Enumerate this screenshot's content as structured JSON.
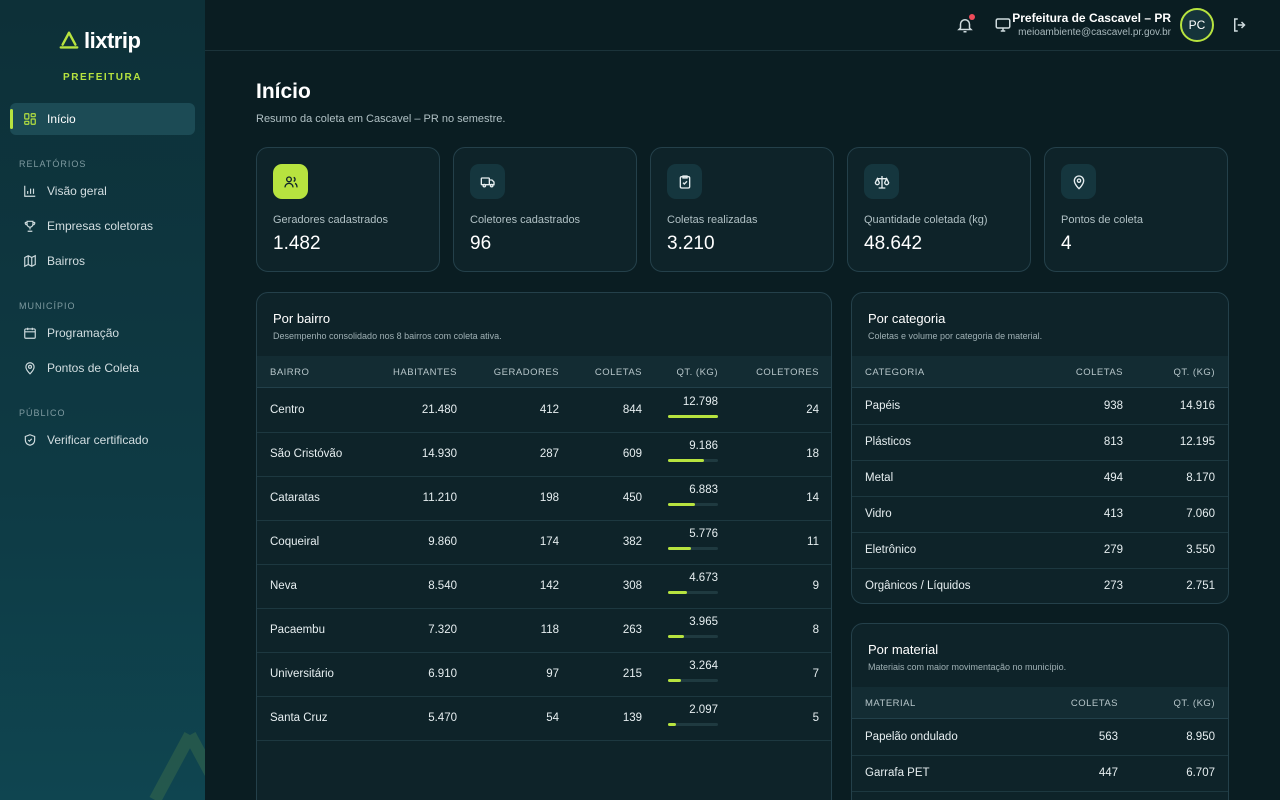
{
  "brand": {
    "name": "lixtrip",
    "subtitle": "PREFEITURA"
  },
  "sidebar": {
    "active": {
      "label": "Início"
    },
    "sections": [
      {
        "title": "RELATÓRIOS",
        "items": [
          {
            "label": "Visão geral",
            "icon": "bar-chart-icon"
          },
          {
            "label": "Empresas coletoras",
            "icon": "trophy-icon"
          },
          {
            "label": "Bairros",
            "icon": "map-icon"
          }
        ]
      },
      {
        "title": "MUNICÍPIO",
        "items": [
          {
            "label": "Programação",
            "icon": "calendar-icon"
          },
          {
            "label": "Pontos de Coleta",
            "icon": "map-pin-icon"
          }
        ]
      },
      {
        "title": "PÚBLICO",
        "items": [
          {
            "label": "Verificar certificado",
            "icon": "shield-icon"
          }
        ]
      }
    ]
  },
  "topbar": {
    "user_name": "Prefeitura de Cascavel – PR",
    "user_email": "meioambiente@cascavel.pr.gov.br",
    "avatar_initials": "PC"
  },
  "page": {
    "title": "Início",
    "subtitle": "Resumo da coleta em Cascavel – PR no semestre."
  },
  "stats": [
    {
      "label": "Geradores cadastrados",
      "value": "1.482",
      "icon": "users-icon"
    },
    {
      "label": "Coletores cadastrados",
      "value": "96",
      "icon": "truck-icon"
    },
    {
      "label": "Coletas realizadas",
      "value": "3.210",
      "icon": "clipboard-check-icon"
    },
    {
      "label": "Quantidade coletada (kg)",
      "value": "48.642",
      "icon": "scale-icon"
    },
    {
      "label": "Pontos de coleta",
      "value": "4",
      "icon": "map-pin-icon"
    }
  ],
  "bairro_table": {
    "title": "Por bairro",
    "subtitle": "Desempenho consolidado nos 8 bairros com coleta ativa.",
    "headers": [
      "BAIRRO",
      "HABITANTES",
      "GERADORES",
      "COLETAS",
      "QT. (KG)",
      "COLETORES"
    ],
    "rows": [
      {
        "bairro": "Centro",
        "habitantes": "21.480",
        "geradores": "412",
        "coletas": "844",
        "qt": "12.798",
        "coletores": "24",
        "share": 1.0
      },
      {
        "bairro": "São Cristóvão",
        "habitantes": "14.930",
        "geradores": "287",
        "coletas": "609",
        "qt": "9.186",
        "coletores": "18",
        "share": 0.72
      },
      {
        "bairro": "Cataratas",
        "habitantes": "11.210",
        "geradores": "198",
        "coletas": "450",
        "qt": "6.883",
        "coletores": "14",
        "share": 0.54
      },
      {
        "bairro": "Coqueiral",
        "habitantes": "9.860",
        "geradores": "174",
        "coletas": "382",
        "qt": "5.776",
        "coletores": "11",
        "share": 0.45
      },
      {
        "bairro": "Neva",
        "habitantes": "8.540",
        "geradores": "142",
        "coletas": "308",
        "qt": "4.673",
        "coletores": "9",
        "share": 0.37
      },
      {
        "bairro": "Pacaembu",
        "habitantes": "7.320",
        "geradores": "118",
        "coletas": "263",
        "qt": "3.965",
        "coletores": "8",
        "share": 0.31
      },
      {
        "bairro": "Universitário",
        "habitantes": "6.910",
        "geradores": "97",
        "coletas": "215",
        "qt": "3.264",
        "coletores": "7",
        "share": 0.26
      },
      {
        "bairro": "Santa Cruz",
        "habitantes": "5.470",
        "geradores": "54",
        "coletas": "139",
        "qt": "2.097",
        "coletores": "5",
        "share": 0.16
      }
    ]
  },
  "categoria_table": {
    "title": "Por categoria",
    "subtitle": "Coletas e volume por categoria de material.",
    "headers": [
      "CATEGORIA",
      "COLETAS",
      "QT. (KG)"
    ],
    "rows": [
      {
        "nome": "Papéis",
        "coletas": "938",
        "qt": "14.916"
      },
      {
        "nome": "Plásticos",
        "coletas": "813",
        "qt": "12.195"
      },
      {
        "nome": "Metal",
        "coletas": "494",
        "qt": "8.170"
      },
      {
        "nome": "Vidro",
        "coletas": "413",
        "qt": "7.060"
      },
      {
        "nome": "Eletrônico",
        "coletas": "279",
        "qt": "3.550"
      },
      {
        "nome": "Orgânicos / Líquidos",
        "coletas": "273",
        "qt": "2.751"
      }
    ]
  },
  "material_table": {
    "title": "Por material",
    "subtitle": "Materiais com maior movimentação no município.",
    "headers": [
      "MATERIAL",
      "COLETAS",
      "QT. (KG)"
    ],
    "rows": [
      {
        "nome": "Papelão ondulado",
        "coletas": "563",
        "qt": "8.950"
      },
      {
        "nome": "Garrafa PET",
        "coletas": "447",
        "qt": "6.707"
      }
    ]
  },
  "colors": {
    "accent": "#b7e33f",
    "background": "#0a1d22",
    "sidebar": "#0e3a44",
    "notification": "#ef4b5a"
  }
}
